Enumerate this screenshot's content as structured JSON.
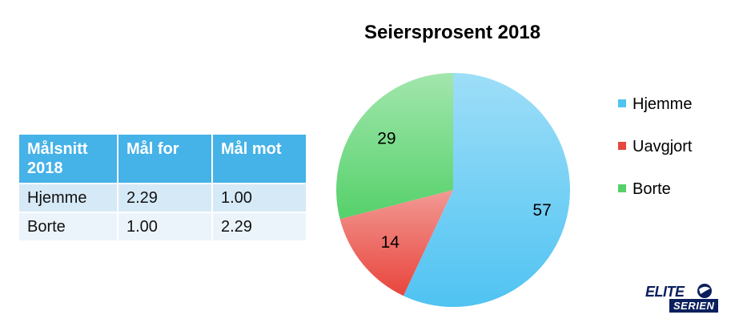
{
  "table": {
    "headers": [
      "Målsnitt 2018",
      "Mål for",
      "Mål mot"
    ],
    "rows": [
      [
        "Hjemme",
        "2.29",
        "1.00"
      ],
      [
        "Borte",
        "1.00",
        "2.29"
      ]
    ]
  },
  "chart_data": {
    "type": "pie",
    "title": "Seiersprosent 2018",
    "slices": [
      {
        "label": "Hjemme",
        "value": 57,
        "color": "#4fc3f2"
      },
      {
        "label": "Uavgjort",
        "value": 14,
        "color": "#e8453c"
      },
      {
        "label": "Borte",
        "value": 29,
        "color": "#55d16a"
      }
    ],
    "legend_position": "right",
    "data_labels": true
  },
  "logo": {
    "word1": "ELITE",
    "word2": "SERIEN"
  }
}
